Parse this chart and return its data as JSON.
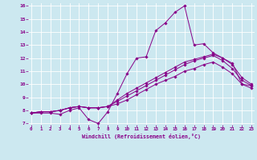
{
  "xlabel": "Windchill (Refroidissement éolien,°C)",
  "background_color": "#cce8f0",
  "line_color": "#880088",
  "grid_color": "#ffffff",
  "xlim": [
    0,
    23
  ],
  "ylim": [
    7,
    16
  ],
  "xticks": [
    0,
    1,
    2,
    3,
    4,
    5,
    6,
    7,
    8,
    9,
    10,
    11,
    12,
    13,
    14,
    15,
    16,
    17,
    18,
    19,
    20,
    21,
    22,
    23
  ],
  "yticks": [
    7,
    8,
    9,
    10,
    11,
    12,
    13,
    14,
    15,
    16
  ],
  "series": [
    [
      7.8,
      7.8,
      7.8,
      7.7,
      8.0,
      8.2,
      7.3,
      7.0,
      7.9,
      9.3,
      10.8,
      12.0,
      12.1,
      14.1,
      14.7,
      15.5,
      16.0,
      13.0,
      13.1,
      12.4,
      12.0,
      11.6,
      10.0,
      9.9
    ],
    [
      7.8,
      7.9,
      7.9,
      8.0,
      8.2,
      8.3,
      8.2,
      8.2,
      8.3,
      8.8,
      9.3,
      9.7,
      10.1,
      10.5,
      10.9,
      11.3,
      11.7,
      11.9,
      12.1,
      12.3,
      12.0,
      11.5,
      10.5,
      10.0
    ],
    [
      7.8,
      7.9,
      7.9,
      8.0,
      8.2,
      8.3,
      8.2,
      8.2,
      8.3,
      8.7,
      9.1,
      9.5,
      9.9,
      10.3,
      10.7,
      11.1,
      11.5,
      11.8,
      12.0,
      12.2,
      11.8,
      11.2,
      10.3,
      9.9
    ],
    [
      7.8,
      7.9,
      7.9,
      8.0,
      8.2,
      8.3,
      8.2,
      8.2,
      8.3,
      8.5,
      8.8,
      9.2,
      9.6,
      10.0,
      10.3,
      10.6,
      11.0,
      11.2,
      11.5,
      11.7,
      11.3,
      10.8,
      10.0,
      9.7
    ]
  ]
}
